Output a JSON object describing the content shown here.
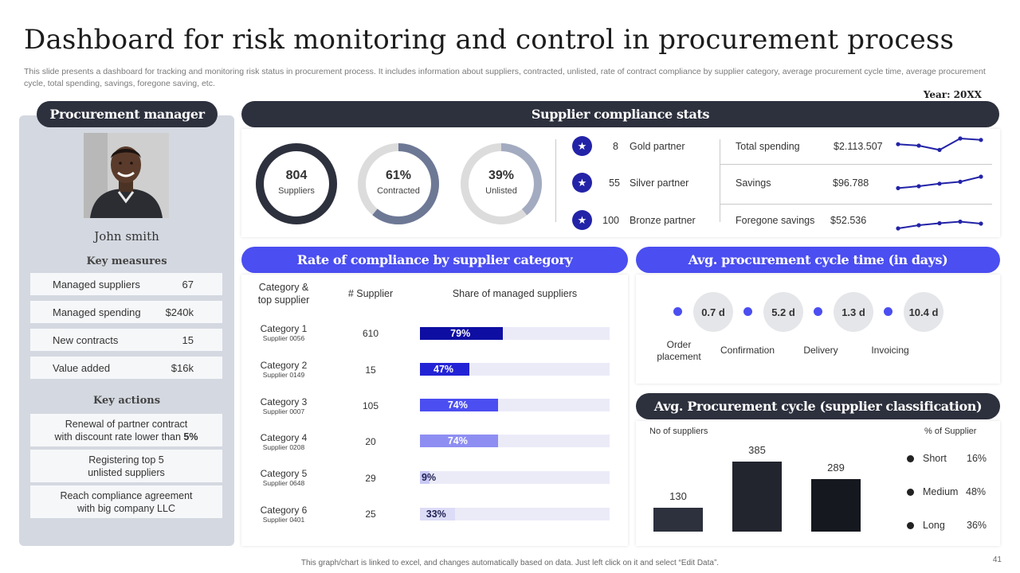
{
  "title": "Dashboard for risk monitoring and control in procurement process",
  "subtitle": "This slide presents a dashboard for tracking and monitoring risk status in procurement process. It includes information about suppliers, contracted, unlisted, rate of contract compliance by supplier category, average procurement cycle time, average procurement cycle, total spending, savings, foregone saving, etc.",
  "year": "Year: 20XX",
  "manager": {
    "header": "Procurement manager",
    "name": "John smith",
    "measures_title": "Key measures",
    "measures": [
      {
        "label": "Managed suppliers",
        "value": "67"
      },
      {
        "label": "Managed spending",
        "value": "$240k"
      },
      {
        "label": "New contracts",
        "value": "15"
      },
      {
        "label": "Value added",
        "value": "$16k"
      }
    ],
    "actions_title": "Key actions",
    "actions": [
      {
        "line1": "Renewal of partner contract",
        "line2_prefix": "with discount rate lower than ",
        "line2_bold": "5%"
      },
      {
        "line1": "Registering top 5",
        "line2_prefix": "unlisted suppliers",
        "line2_bold": ""
      },
      {
        "line1": "Reach compliance agreement",
        "line2_prefix": "with big company LLC",
        "line2_bold": ""
      }
    ]
  },
  "compliance_stats": {
    "header": "Supplier compliance stats",
    "rings": [
      {
        "value": "804",
        "label": "Suppliers",
        "fraction": 1.0,
        "color": "#2d303d"
      },
      {
        "value": "61%",
        "label": "Contracted",
        "fraction": 0.61,
        "color": "#6d7895"
      },
      {
        "value": "39%",
        "label": "Unlisted",
        "fraction": 0.39,
        "color": "#a3abc0"
      }
    ],
    "partners": [
      {
        "count": "8",
        "label": "Gold partner"
      },
      {
        "count": "55",
        "label": "Silver partner"
      },
      {
        "count": "100",
        "label": "Bronze partner"
      }
    ],
    "financials": [
      {
        "label": "Total spending",
        "value": "$2.113.507",
        "trend": [
          0.6,
          0.5,
          0.2,
          1.0,
          0.9
        ]
      },
      {
        "label": "Savings",
        "value": "$96.788",
        "trend": [
          0.1,
          0.25,
          0.45,
          0.6,
          1.0
        ]
      },
      {
        "label": "Foregone savings",
        "value": "$52.536",
        "trend": [
          0.0,
          0.4,
          0.65,
          0.85,
          0.6
        ]
      }
    ]
  },
  "rate_compliance": {
    "header": "Rate of compliance by supplier category",
    "col_category": "Category &\ntop supplier",
    "col_supplier": "# Supplier",
    "col_share": "Share of managed suppliers",
    "rows": [
      {
        "category": "Category 1",
        "supplier": "Supplier 0056",
        "count": "610",
        "share": 79,
        "label": "79%",
        "color": "#0e0ea3",
        "text_color": "#ffffff"
      },
      {
        "category": "Category 2",
        "supplier": "Supplier 0149",
        "count": "15",
        "share": 47,
        "label": "47%",
        "color": "#2323d6",
        "text_color": "#ffffff"
      },
      {
        "category": "Category 3",
        "supplier": "Supplier 0007",
        "count": "105",
        "share": 74,
        "label": "74%",
        "color": "#4b4ef0",
        "text_color": "#ffffff"
      },
      {
        "category": "Category 4",
        "supplier": "Supplier 0208",
        "count": "20",
        "share": 74,
        "label": "74%",
        "color": "#8e8ef2",
        "text_color": "#ffffff"
      },
      {
        "category": "Category 5",
        "supplier": "Supplier 0648",
        "count": "29",
        "share": 9,
        "label": "9%",
        "color": "#c9c9f4",
        "text_color": "#222255"
      },
      {
        "category": "Category 6",
        "supplier": "Supplier 0401",
        "count": "25",
        "share": 33,
        "label": "33%",
        "color": "#dcdcf7",
        "text_color": "#222255"
      }
    ]
  },
  "cycle_time": {
    "header": "Avg. procurement cycle time (in days)",
    "values": [
      "0.7 d",
      "5.2 d",
      "1.3 d",
      "10.4 d"
    ],
    "stages": [
      "Order\nplacement",
      "Confirmation",
      "Delivery",
      "Invoicing"
    ]
  },
  "classification": {
    "header": "Avg. Procurement cycle (supplier classification)",
    "left_head": "No of suppliers",
    "right_head": "% of Supplier",
    "chart_data": {
      "type": "bar",
      "categories": [
        "Short",
        "Medium",
        "Long"
      ],
      "values": [
        130,
        385,
        289
      ],
      "ylim": [
        0,
        400
      ],
      "colors": [
        "#2d303d",
        "#22252e",
        "#16181f"
      ]
    },
    "legend": [
      {
        "label": "Short",
        "pct": "16%"
      },
      {
        "label": "Medium",
        "pct": "48%"
      },
      {
        "label": "Long",
        "pct": "36%"
      }
    ]
  },
  "footer": "This graph/chart is linked to excel, and changes automatically based on data. Just left click on it and select “Edit Data”.",
  "page_number": "41"
}
